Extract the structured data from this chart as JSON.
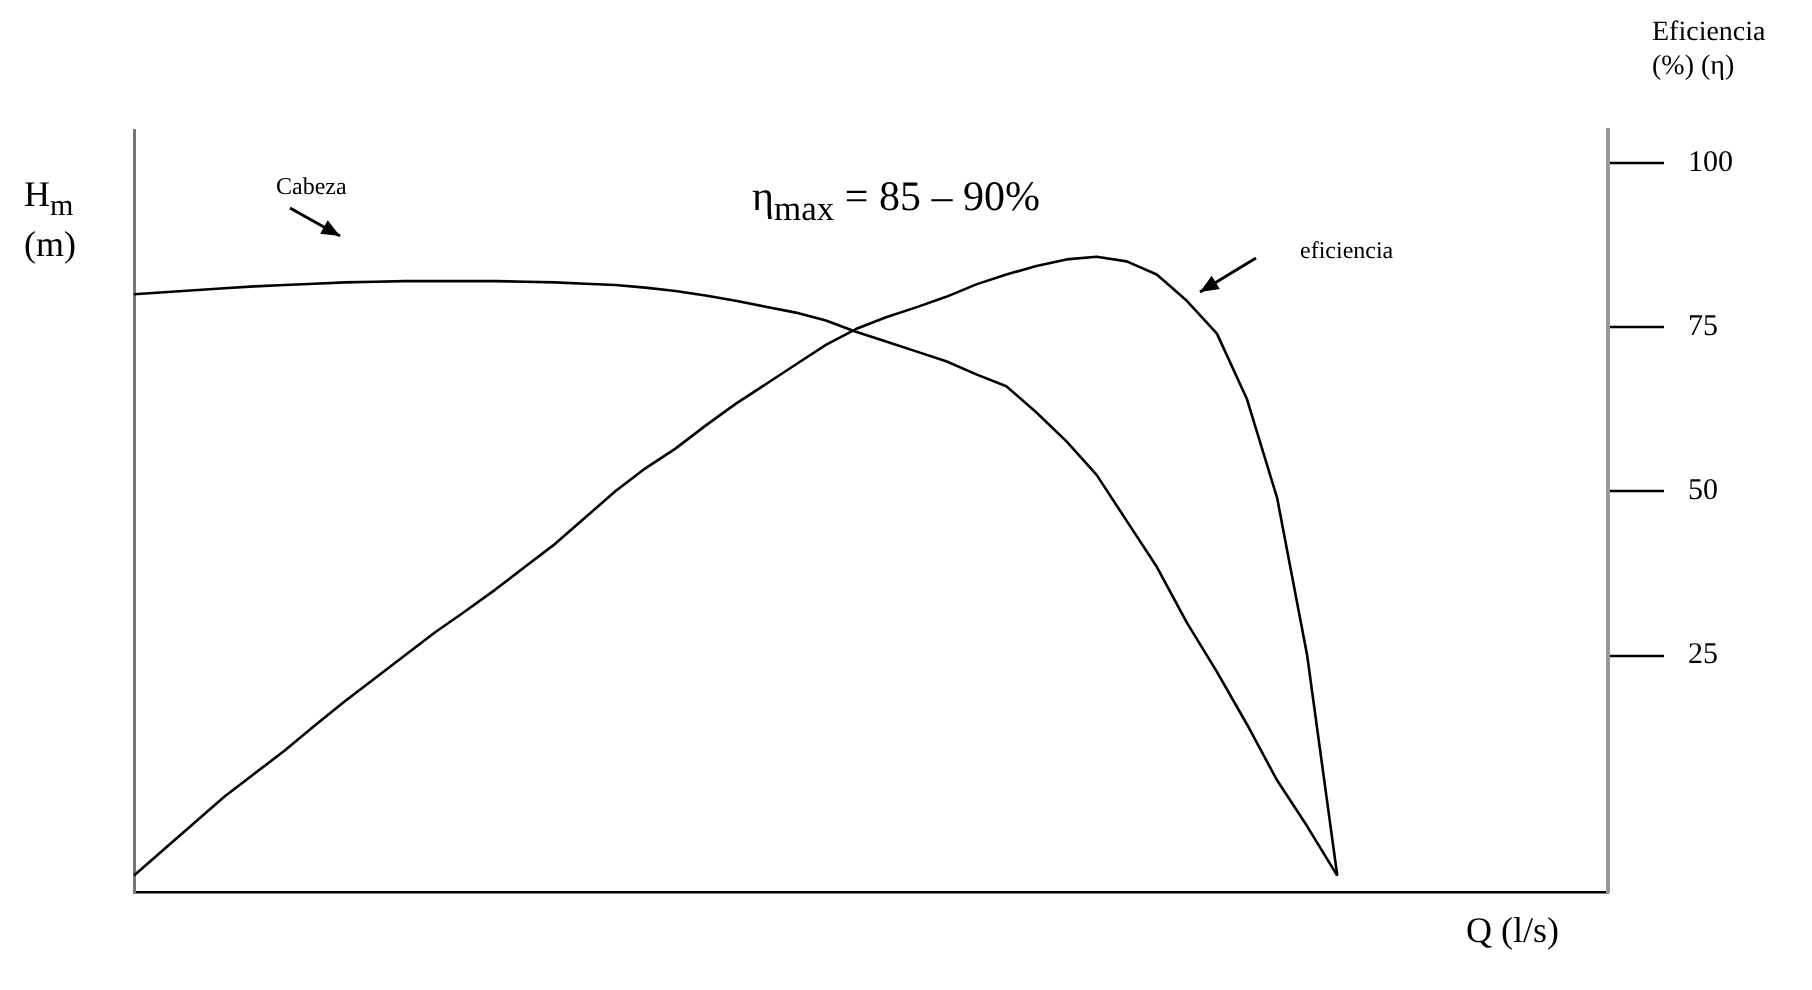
{
  "chart_data": {
    "type": "line",
    "xlabel": "Q (l/s)",
    "ylabel": "Eficiencia (%) (η)",
    "y2label": "H$_{m}$ (m)",
    "annotations": [
      "Cabeza",
      "η$_{max}$ = 85 – 90%",
      "eficiencia"
    ],
    "categories": [
      null,
      null,
      null,
      null,
      null,
      null,
      null,
      null,
      null,
      null,
      null,
      null,
      null,
      null,
      null,
      null,
      null,
      null,
      null,
      null,
      null,
      null,
      null,
      null,
      null,
      null,
      null,
      null,
      null,
      null,
      null,
      null,
      null,
      null,
      null,
      null,
      null,
      null,
      null,
      null,
      null,
      null,
      null,
      null,
      null,
      null,
      null,
      null,
      null,
      null
    ],
    "series": [
      {
        "color": "#000000",
        "values": [
          80,
          80.3,
          80.6,
          80.9,
          81.2,
          81.4,
          81.6,
          81.8,
          81.9,
          82,
          82,
          82,
          82,
          81.9,
          81.8,
          81.6,
          81.4,
          81,
          80.5,
          79.8,
          79,
          78.1,
          77.2,
          76,
          74.3,
          72.8,
          71.3,
          69.8,
          67.8,
          66,
          62,
          57.6,
          52.5,
          45.5,
          38.5,
          30,
          22.5,
          14.5,
          6,
          -1,
          -8.5,
          null,
          null,
          null,
          null,
          null,
          null,
          null,
          null,
          null
        ]
      },
      {
        "color": "#000000",
        "values": [
          -8.5,
          -4.5,
          -0.5,
          3.5,
          7,
          10.5,
          14.3,
          18,
          21.5,
          25,
          28.5,
          31.7,
          35,
          38.5,
          42,
          46,
          50,
          53.5,
          56.5,
          60,
          63.3,
          66.3,
          69.3,
          72.3,
          74.7,
          76.5,
          78,
          79.6,
          81.5,
          83,
          84.3,
          85.3,
          85.7,
          85,
          83,
          79,
          74,
          64,
          49,
          25,
          -8.5,
          null,
          null,
          null,
          null,
          null,
          null,
          null,
          null,
          null
        ]
      }
    ],
    "ylim": [
      -11,
      105
    ],
    "yticks": [
      25,
      50,
      75,
      100
    ],
    "grid": false,
    "legend": false,
    "marker": "none",
    "line_style": "solid"
  }
}
